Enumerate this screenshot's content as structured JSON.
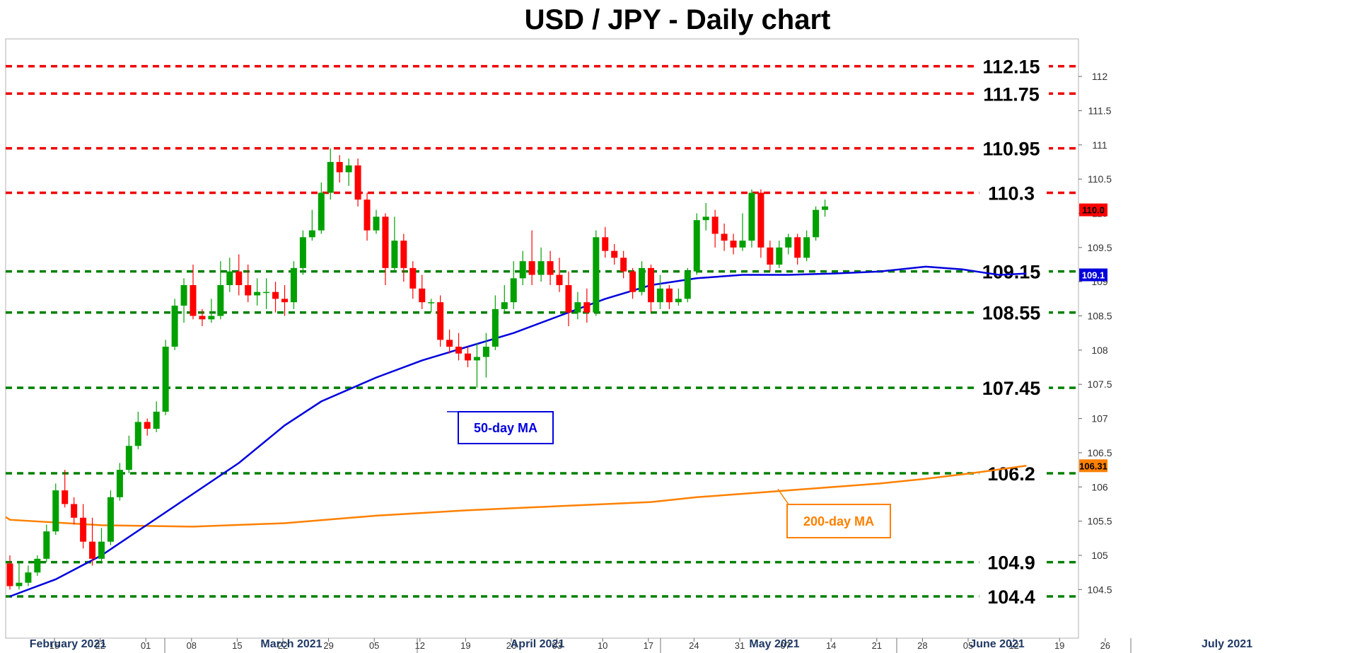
{
  "chart_data": {
    "type": "candlestick",
    "title": "USD / JPY - Daily chart",
    "ylim": [
      104.2,
      112.3
    ],
    "y_ticks": [
      "104.5",
      "105",
      "105.5",
      "106",
      "106.5",
      "107",
      "107.5",
      "108",
      "108.5",
      "109",
      "109.5",
      "110",
      "110.5",
      "111",
      "111.5",
      "112"
    ],
    "x_ticks": [
      "15",
      "22",
      "01",
      "08",
      "15",
      "22",
      "29",
      "05",
      "12",
      "19",
      "26",
      "03",
      "10",
      "17",
      "24",
      "31",
      "07",
      "14",
      "21",
      "28",
      "05",
      "12",
      "19",
      "26"
    ],
    "months": [
      "February 2021",
      "March 2021",
      "April 2021",
      "May 2021",
      "June 2021",
      "July 2021"
    ],
    "colors": {
      "up": "#00a000",
      "down": "#ff0000",
      "ma50": "#0000dd",
      "ma200": "#ff8000",
      "resistance": "#ee0000",
      "support": "#008000"
    },
    "levels": [
      {
        "value": 112.15,
        "label": "112.15",
        "type": "resistance"
      },
      {
        "value": 111.75,
        "label": "111.75",
        "type": "resistance"
      },
      {
        "value": 110.95,
        "label": "110.95",
        "type": "resistance"
      },
      {
        "value": 110.3,
        "label": "110.3",
        "type": "resistance"
      },
      {
        "value": 109.15,
        "label": "109.15",
        "type": "support"
      },
      {
        "value": 108.55,
        "label": "108.55",
        "type": "support"
      },
      {
        "value": 107.45,
        "label": "107.45",
        "type": "support"
      },
      {
        "value": 106.2,
        "label": "106.2",
        "type": "support"
      },
      {
        "value": 104.9,
        "label": "104.9",
        "type": "support"
      },
      {
        "value": 104.4,
        "label": "104.4",
        "type": "support"
      }
    ],
    "price_tags": [
      {
        "text": "110.0",
        "value": 110.05,
        "color": "#ff0000"
      },
      {
        "text": "109.1",
        "value": 109.1,
        "color": "#0000dd"
      },
      {
        "text": "106.31",
        "value": 106.31,
        "color": "#ff8000"
      }
    ],
    "ma50": {
      "name": "50-day MA",
      "points": [
        [
          0,
          104.4
        ],
        [
          5,
          104.65
        ],
        [
          10,
          105.0
        ],
        [
          15,
          105.45
        ],
        [
          20,
          105.9
        ],
        [
          25,
          106.35
        ],
        [
          30,
          106.9
        ],
        [
          34,
          107.25
        ],
        [
          40,
          107.6
        ],
        [
          45,
          107.85
        ],
        [
          50,
          108.05
        ],
        [
          55,
          108.25
        ],
        [
          60,
          108.5
        ],
        [
          65,
          108.75
        ],
        [
          70,
          108.95
        ],
        [
          75,
          109.05
        ],
        [
          80,
          109.1
        ],
        [
          85,
          109.1
        ],
        [
          90,
          109.12
        ],
        [
          95,
          109.15
        ],
        [
          100,
          109.22
        ],
        [
          104,
          109.18
        ],
        [
          108,
          109.1
        ],
        [
          111,
          109.12
        ]
      ]
    },
    "ma200": {
      "name": "200-day MA",
      "points": [
        [
          -6,
          105.56
        ],
        [
          0,
          105.52
        ],
        [
          10,
          105.44
        ],
        [
          20,
          105.42
        ],
        [
          30,
          105.47
        ],
        [
          40,
          105.58
        ],
        [
          50,
          105.66
        ],
        [
          60,
          105.72
        ],
        [
          70,
          105.78
        ],
        [
          75,
          105.85
        ],
        [
          80,
          105.9
        ],
        [
          85,
          105.95
        ],
        [
          90,
          106.0
        ],
        [
          95,
          106.05
        ],
        [
          100,
          106.12
        ],
        [
          105,
          106.2
        ],
        [
          111,
          106.31
        ]
      ]
    },
    "candles": [
      [
        104.88,
        104.55,
        105.0,
        104.5
      ],
      [
        104.55,
        104.6,
        104.9,
        104.5
      ],
      [
        104.6,
        104.75,
        104.85,
        104.55
      ],
      [
        104.75,
        104.95,
        105.0,
        104.7
      ],
      [
        104.95,
        105.35,
        105.45,
        104.9
      ],
      [
        105.35,
        105.95,
        106.05,
        105.3
      ],
      [
        105.95,
        105.75,
        106.25,
        105.7
      ],
      [
        105.75,
        105.55,
        105.85,
        105.45
      ],
      [
        105.55,
        105.2,
        105.75,
        105.1
      ],
      [
        105.2,
        104.95,
        105.55,
        104.85
      ],
      [
        104.95,
        105.2,
        105.4,
        104.9
      ],
      [
        105.2,
        105.85,
        105.95,
        105.15
      ],
      [
        105.85,
        106.25,
        106.35,
        105.8
      ],
      [
        106.25,
        106.6,
        106.75,
        106.2
      ],
      [
        106.6,
        106.95,
        107.1,
        106.55
      ],
      [
        106.95,
        106.85,
        107.0,
        106.75
      ],
      [
        106.85,
        107.1,
        107.25,
        106.8
      ],
      [
        107.1,
        108.05,
        108.15,
        107.05
      ],
      [
        108.05,
        108.65,
        108.75,
        108.0
      ],
      [
        108.65,
        108.95,
        109.05,
        108.4
      ],
      [
        108.95,
        108.5,
        109.25,
        108.45
      ],
      [
        108.5,
        108.45,
        108.6,
        108.35
      ],
      [
        108.45,
        108.5,
        108.75,
        108.4
      ],
      [
        108.5,
        108.95,
        109.3,
        108.45
      ],
      [
        108.95,
        109.15,
        109.35,
        108.85
      ],
      [
        109.15,
        108.95,
        109.4,
        108.8
      ],
      [
        108.95,
        108.8,
        109.25,
        108.7
      ],
      [
        108.8,
        108.85,
        109.05,
        108.65
      ],
      [
        108.85,
        108.85,
        109.05,
        108.6
      ],
      [
        108.85,
        108.75,
        109.0,
        108.55
      ],
      [
        108.75,
        108.7,
        108.95,
        108.5
      ],
      [
        108.7,
        109.2,
        109.3,
        108.6
      ],
      [
        109.2,
        109.65,
        109.75,
        109.1
      ],
      [
        109.65,
        109.75,
        110.05,
        109.6
      ],
      [
        109.75,
        110.3,
        110.45,
        109.7
      ],
      [
        110.3,
        110.75,
        110.95,
        110.2
      ],
      [
        110.75,
        110.6,
        110.85,
        110.45
      ],
      [
        110.6,
        110.7,
        110.8,
        110.4
      ],
      [
        110.7,
        110.2,
        110.8,
        110.1
      ],
      [
        110.2,
        109.75,
        110.3,
        109.6
      ],
      [
        109.75,
        109.95,
        110.05,
        109.7
      ],
      [
        109.95,
        109.2,
        110.0,
        108.95
      ],
      [
        109.2,
        109.6,
        109.95,
        109.15
      ],
      [
        109.6,
        109.2,
        109.7,
        109.0
      ],
      [
        109.2,
        108.9,
        109.3,
        108.75
      ],
      [
        108.9,
        108.7,
        109.1,
        108.6
      ],
      [
        108.7,
        108.7,
        108.75,
        108.55
      ],
      [
        108.7,
        108.15,
        108.8,
        108.05
      ],
      [
        108.15,
        108.05,
        108.3,
        107.95
      ],
      [
        108.05,
        107.95,
        108.25,
        107.85
      ],
      [
        107.95,
        107.85,
        108.05,
        107.75
      ],
      [
        107.85,
        107.9,
        108.1,
        107.45
      ],
      [
        107.9,
        108.05,
        108.25,
        107.6
      ],
      [
        108.05,
        108.6,
        108.8,
        108.0
      ],
      [
        108.6,
        108.7,
        108.95,
        108.55
      ],
      [
        108.7,
        109.05,
        109.3,
        108.6
      ],
      [
        109.05,
        109.3,
        109.45,
        108.95
      ],
      [
        109.3,
        109.1,
        109.75,
        108.95
      ],
      [
        109.1,
        109.3,
        109.5,
        109.0
      ],
      [
        109.3,
        109.1,
        109.45,
        108.95
      ],
      [
        109.1,
        108.95,
        109.35,
        108.85
      ],
      [
        108.95,
        108.55,
        109.15,
        108.35
      ],
      [
        108.55,
        108.7,
        108.85,
        108.45
      ],
      [
        108.7,
        108.55,
        108.9,
        108.4
      ],
      [
        108.55,
        109.65,
        109.75,
        108.5
      ],
      [
        109.65,
        109.45,
        109.8,
        109.35
      ],
      [
        109.45,
        109.35,
        109.55,
        109.25
      ],
      [
        109.35,
        109.15,
        109.45,
        109.05
      ],
      [
        109.15,
        108.85,
        109.2,
        108.75
      ],
      [
        108.85,
        109.2,
        109.3,
        108.8
      ],
      [
        109.2,
        108.7,
        109.25,
        108.55
      ],
      [
        108.7,
        108.9,
        109.1,
        108.6
      ],
      [
        108.9,
        108.7,
        108.95,
        108.6
      ],
      [
        108.7,
        108.75,
        108.9,
        108.65
      ],
      [
        108.75,
        109.15,
        109.2,
        108.7
      ],
      [
        109.15,
        109.9,
        110.0,
        109.1
      ],
      [
        109.9,
        109.95,
        110.15,
        109.75
      ],
      [
        109.95,
        109.7,
        110.05,
        109.5
      ],
      [
        109.7,
        109.6,
        109.85,
        109.45
      ],
      [
        109.6,
        109.5,
        109.7,
        109.4
      ],
      [
        109.5,
        109.6,
        110.0,
        109.45
      ],
      [
        109.6,
        110.3,
        110.35,
        109.5
      ],
      [
        110.3,
        109.5,
        110.35,
        109.35
      ],
      [
        109.5,
        109.25,
        109.6,
        109.15
      ],
      [
        109.25,
        109.5,
        109.6,
        109.2
      ],
      [
        109.5,
        109.65,
        109.7,
        109.4
      ],
      [
        109.65,
        109.35,
        109.7,
        109.25
      ],
      [
        109.35,
        109.65,
        109.75,
        109.3
      ],
      [
        109.65,
        110.05,
        110.1,
        109.6
      ],
      [
        110.05,
        110.1,
        110.2,
        109.95
      ]
    ]
  }
}
